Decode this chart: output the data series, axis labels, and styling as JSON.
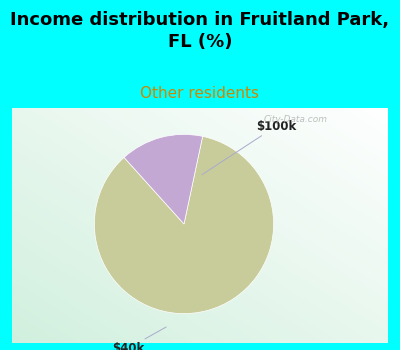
{
  "title": "Income distribution in Fruitland Park,\nFL (%)",
  "subtitle": "Other residents",
  "title_fontsize": 13,
  "subtitle_fontsize": 11,
  "title_color": "#000000",
  "subtitle_color": "#cc8800",
  "bg_color": "#00FFFF",
  "slices": [
    85,
    15
  ],
  "slice_colors": [
    "#c8cc9a",
    "#c4a8d4"
  ],
  "slice_labels": [
    "$40k",
    "$100k"
  ],
  "watermark": "City-Data.com",
  "startangle": 78
}
